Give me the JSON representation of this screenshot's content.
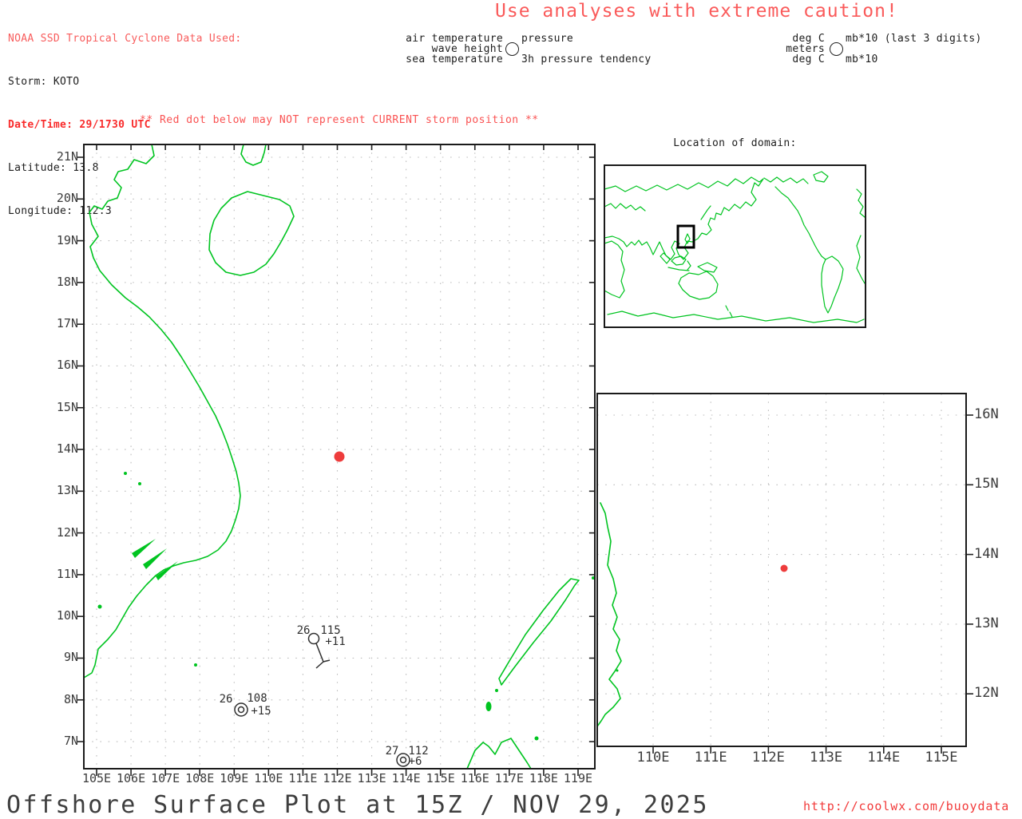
{
  "header": {
    "noaa_line": "NOAA SSD Tropical Cyclone Data Used:",
    "storm_line": "Storm: KOTO",
    "datetime_line": "Date/Time: 29/1730 UTC",
    "latitude_line": "Latitude: 13.8",
    "longitude_line": "Longitude: 112.3",
    "caution": "Use analyses with extreme caution!"
  },
  "legend": {
    "station_model": {
      "air_temperature": "air temperature",
      "wave_height": "wave height",
      "sea_temperature": "sea temperature",
      "pressure": "pressure",
      "pressure_tendency": "3h pressure tendency"
    },
    "units": {
      "air": "deg C",
      "wave": "meters",
      "sea": "deg C",
      "pressure": "mb*10 (last 3 digits)",
      "tendency": "mb*10"
    }
  },
  "main_map": {
    "warning": "** Red dot below may NOT represent CURRENT storm position **",
    "lat_ticks": [
      "21N",
      "20N",
      "19N",
      "18N",
      "17N",
      "16N",
      "15N",
      "14N",
      "13N",
      "12N",
      "11N",
      "10N",
      "9N",
      "8N",
      "7N"
    ],
    "lon_ticks": [
      "105E",
      "106E",
      "107E",
      "108E",
      "109E",
      "110E",
      "111E",
      "112E",
      "113E",
      "114E",
      "115E",
      "116E",
      "117E",
      "118E",
      "119E"
    ],
    "storm_dot": {
      "latitude": "13.8",
      "longitude": "112.3"
    },
    "stations": [
      {
        "air_temp": "26",
        "pressure": "115",
        "tendency": "+11",
        "wind": "barb"
      },
      {
        "air_temp": "26",
        "pressure": "108",
        "tendency": "+15",
        "wind": "calm"
      },
      {
        "air_temp": "27",
        "pressure": "112",
        "tendency": "+6",
        "wind": "calm"
      }
    ]
  },
  "inset_map": {
    "title": "Location of domain:"
  },
  "zoom_map": {
    "lat_ticks": [
      "16N",
      "15N",
      "14N",
      "13N",
      "12N"
    ],
    "lon_ticks": [
      "110E",
      "111E",
      "112E",
      "113E",
      "114E",
      "115E"
    ],
    "storm_dot": {
      "latitude": "13.8",
      "longitude": "112.3"
    }
  },
  "footer": {
    "title": "Offshore Surface Plot at 15Z / NOV 29, 2025",
    "url": "http://coolwx.com/buoydata"
  },
  "colors": {
    "coastline": "#00c420",
    "storm_dot": "#ee3c3c",
    "caution_text": "#fa5a5a",
    "grid": "#bdbdbd"
  }
}
